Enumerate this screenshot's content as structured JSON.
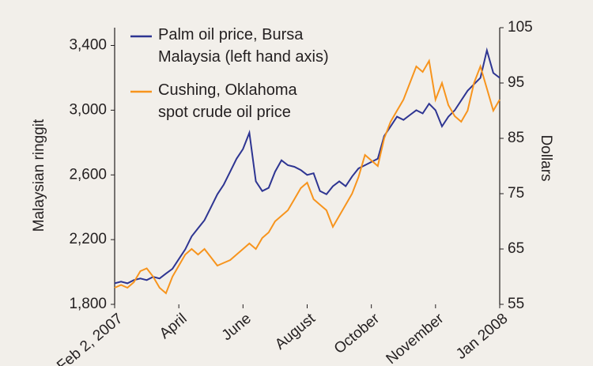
{
  "chart_data": {
    "type": "line",
    "ylabel": "Malaysian ringgit",
    "y2label": "Dollars",
    "categories": [
      "Feb 2, 2007",
      null,
      null,
      null,
      null,
      null,
      null,
      null,
      null,
      null,
      "April",
      null,
      null,
      null,
      null,
      null,
      null,
      null,
      null,
      null,
      "June",
      null,
      null,
      null,
      null,
      null,
      null,
      null,
      null,
      null,
      "August",
      null,
      null,
      null,
      null,
      null,
      null,
      null,
      null,
      null,
      "October",
      null,
      null,
      null,
      null,
      null,
      null,
      null,
      null,
      null,
      "November",
      null,
      null,
      null,
      null,
      null,
      null,
      null,
      null,
      null,
      "Jan 2008"
    ],
    "series": [
      {
        "name": "Palm oil price, Bursa Malaysia (left hand axis)",
        "color": "#2e3592",
        "axis": "y",
        "values": [
          1930,
          1940,
          1930,
          1950,
          1960,
          1950,
          1970,
          1960,
          1990,
          2020,
          2080,
          2140,
          2220,
          2270,
          2320,
          2400,
          2480,
          2540,
          2620,
          2700,
          2760,
          2860,
          2560,
          2500,
          2520,
          2620,
          2690,
          2660,
          2650,
          2630,
          2600,
          2610,
          2500,
          2480,
          2530,
          2560,
          2530,
          2590,
          2640,
          2660,
          2680,
          2700,
          2840,
          2900,
          2960,
          2940,
          2970,
          3000,
          2980,
          3040,
          3000,
          2900,
          2960,
          3000,
          3060,
          3120,
          3160,
          3200,
          3370,
          3230,
          3200
        ]
      },
      {
        "name": "Cushing, Oklahoma spot crude oil price",
        "color": "#f7941d",
        "axis": "y2",
        "values": [
          58,
          58.5,
          58,
          59,
          61,
          61.5,
          60,
          58,
          57,
          60,
          62,
          64,
          65,
          64,
          65,
          63.5,
          62,
          62.5,
          63,
          64,
          65,
          66,
          65,
          67,
          68,
          70,
          71,
          72,
          74,
          76,
          77,
          74,
          73,
          72,
          69,
          71,
          73,
          75,
          78,
          82,
          81,
          80,
          85,
          88,
          90,
          92,
          95,
          98,
          97,
          99,
          92,
          95,
          91,
          89,
          88,
          90,
          95,
          98,
          94,
          90,
          92
        ]
      }
    ],
    "ylim": [
      1800,
      3510
    ],
    "yticks": [
      {
        "value": 1800,
        "label": "1,800"
      },
      {
        "value": 2200,
        "label": "2,200"
      },
      {
        "value": 2600,
        "label": "2,600"
      },
      {
        "value": 3000,
        "label": "3,000"
      },
      {
        "value": 3400,
        "label": "3,400"
      }
    ],
    "y2lim": [
      55,
      105
    ],
    "y2ticks": [
      55,
      65,
      75,
      85,
      95,
      105
    ],
    "grid": false
  }
}
